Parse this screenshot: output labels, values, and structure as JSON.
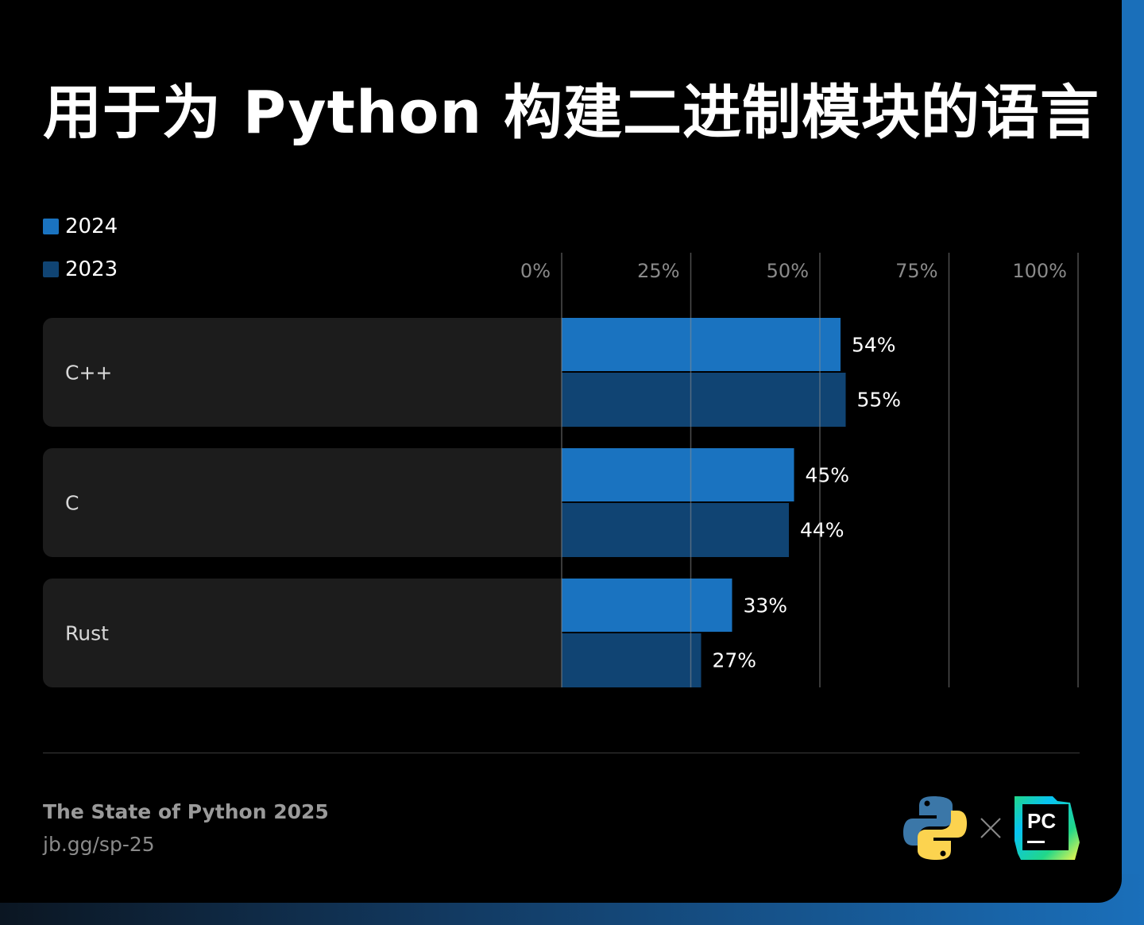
{
  "title": "用于为 Python 构建二进制模块的语言",
  "colors": {
    "y2024": "#1a73c0",
    "y2023": "#104473",
    "panel": "#1c1c1c",
    "grid": "#444444"
  },
  "chart_data": {
    "type": "bar",
    "orientation": "horizontal",
    "title": "用于为 Python 构建二进制模块的语言",
    "categories": [
      "C++",
      "C",
      "Rust"
    ],
    "series": [
      {
        "name": "2024",
        "values": [
          54,
          45,
          33
        ],
        "labels": [
          "54%",
          "45%",
          "33%"
        ]
      },
      {
        "name": "2023",
        "values": [
          55,
          44,
          27
        ],
        "labels": [
          "55%",
          "44%",
          "27%"
        ]
      }
    ],
    "xlim": [
      0,
      100
    ],
    "xticks": [
      0,
      25,
      50,
      75,
      100
    ],
    "xtick_labels": [
      "0%",
      "25%",
      "50%",
      "75%",
      "100%"
    ],
    "grid": true,
    "legend_position": "top-left"
  },
  "footer": {
    "title": "The State of Python 2025",
    "url": "jb.gg/sp-25",
    "logos": [
      "python-logo",
      "pycharm-logo"
    ],
    "logo_text": "PC"
  }
}
